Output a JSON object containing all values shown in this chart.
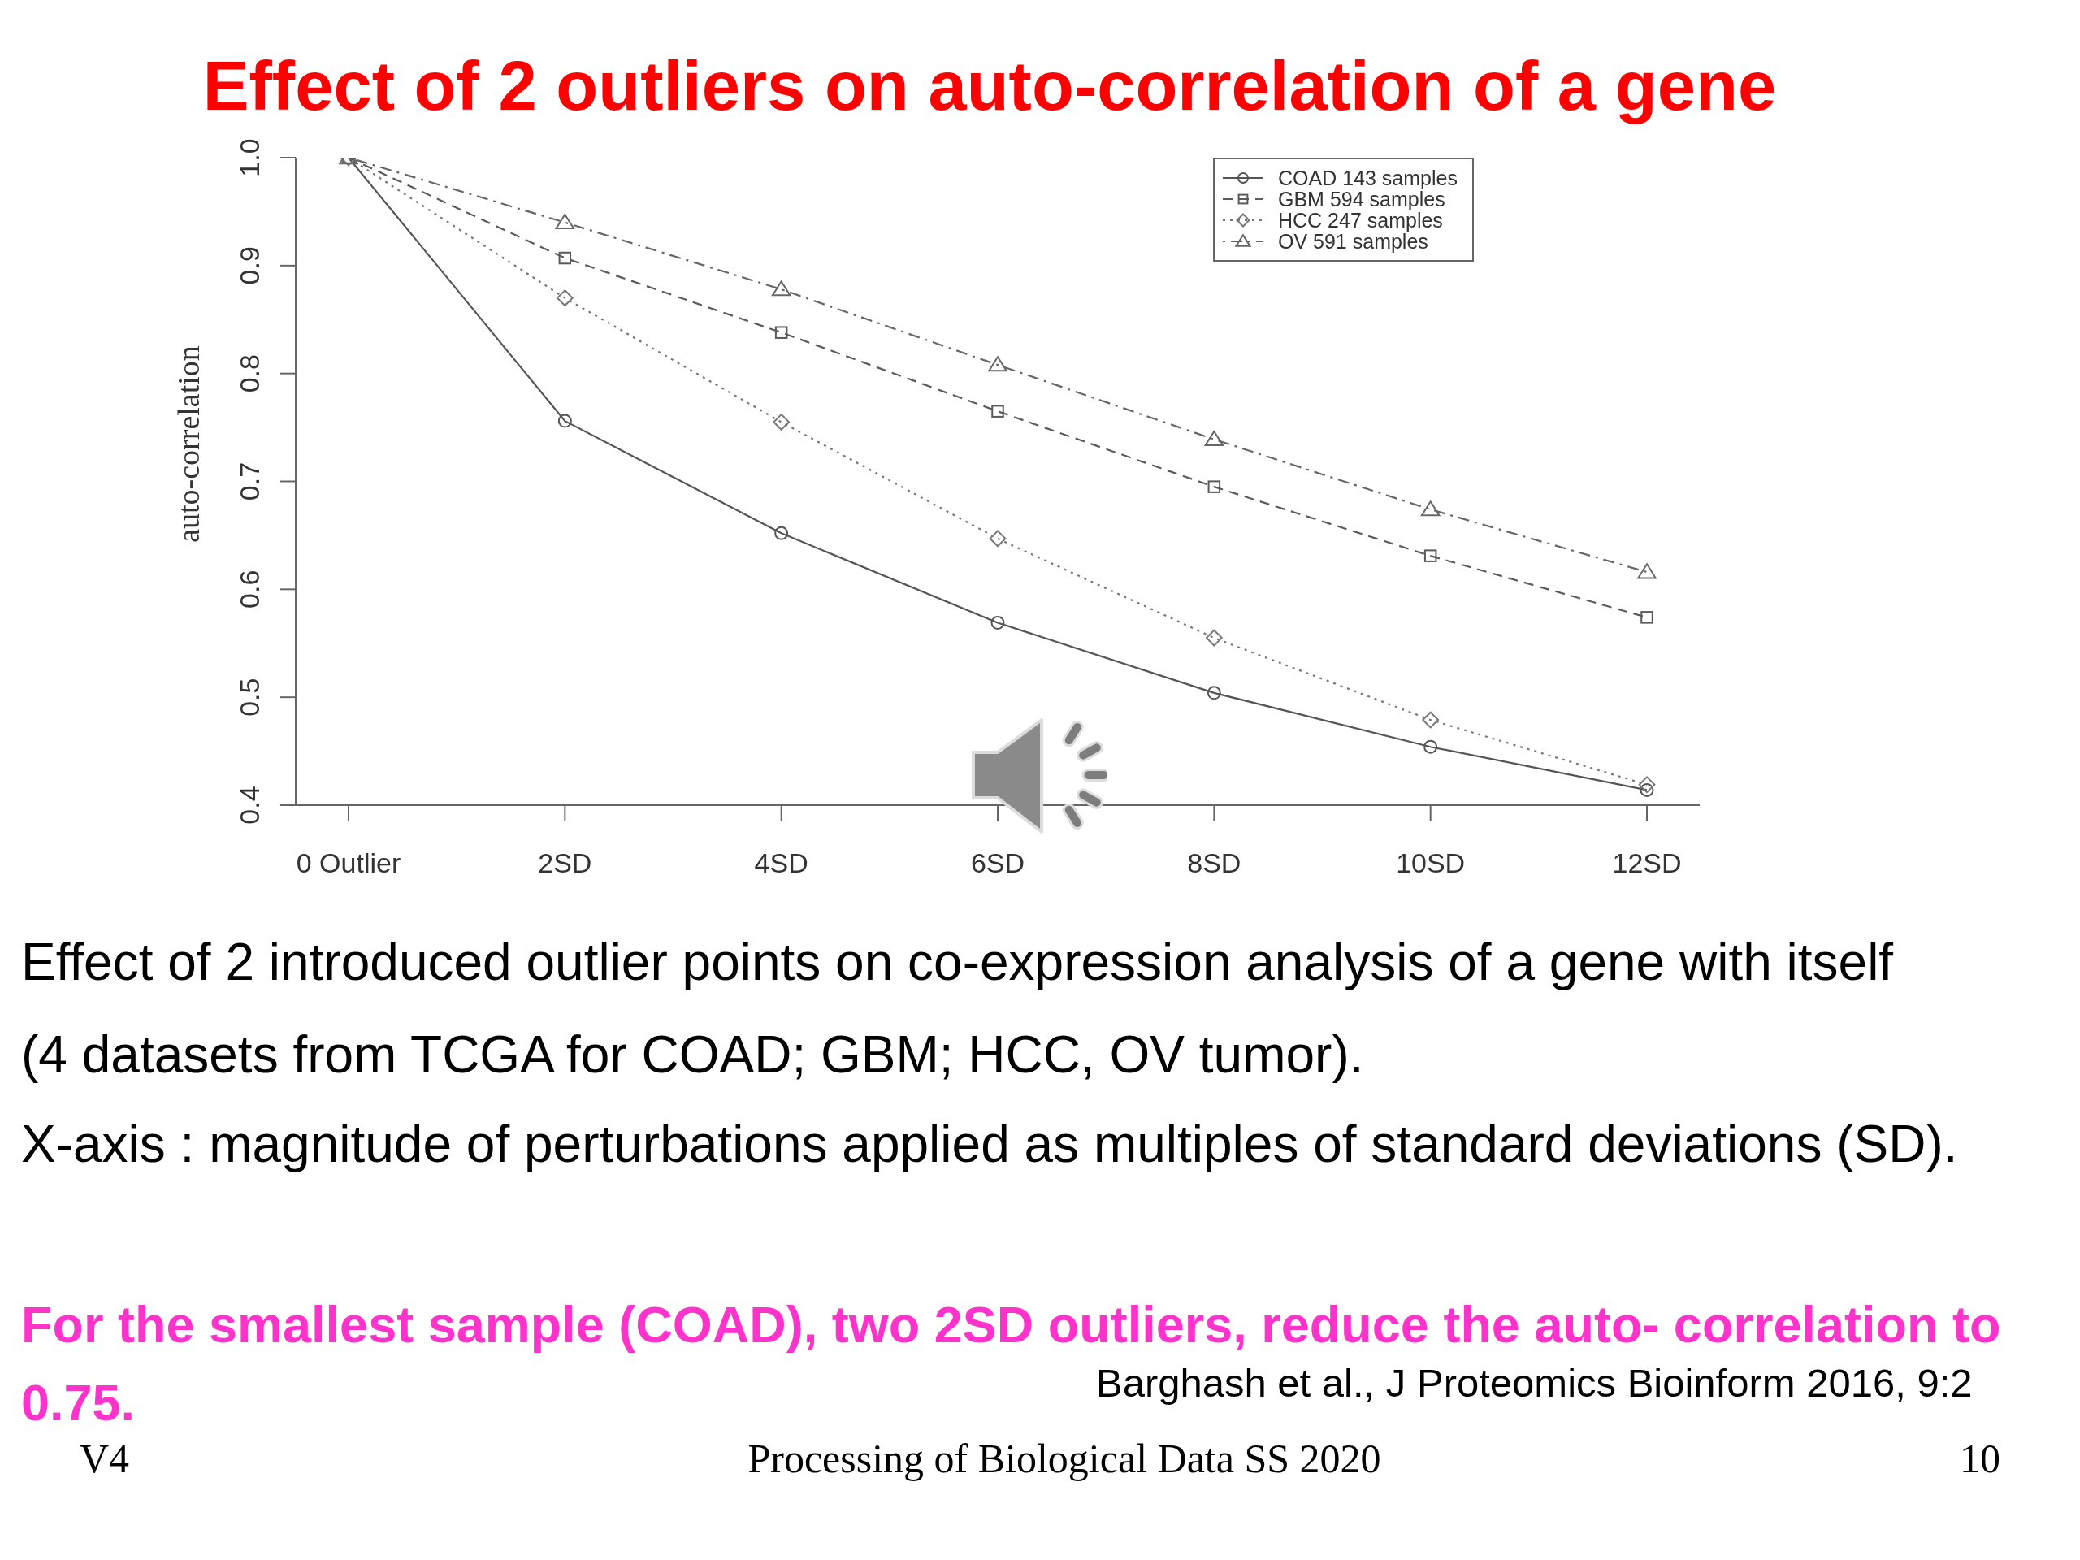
{
  "chart_data": {
    "type": "line",
    "title": "Effect of 2 outliers on auto-correlation of a gene",
    "ylabel": "auto-correlation",
    "categories": [
      "0 Outlier",
      "2SD",
      "4SD",
      "6SD",
      "8SD",
      "10SD",
      "12SD"
    ],
    "series": [
      {
        "name": "COAD 143 samples",
        "color": "#555555",
        "marker": "circle",
        "line_style": "solid",
        "values": [
          1.0,
          0.756,
          0.652,
          0.569,
          0.504,
          0.454,
          0.414
        ]
      },
      {
        "name": "GBM 594 samples",
        "color": "#5a5a5a",
        "marker": "square",
        "line_style": "dashed",
        "values": [
          1.0,
          0.907,
          0.838,
          0.765,
          0.695,
          0.631,
          0.574
        ]
      },
      {
        "name": "HCC 247 samples",
        "color": "#777777",
        "marker": "diamond",
        "line_style": "dotted",
        "values": [
          1.0,
          0.87,
          0.755,
          0.647,
          0.555,
          0.479,
          0.419
        ]
      },
      {
        "name": "OV 591 samples",
        "color": "#666666",
        "marker": "triangle",
        "line_style": "dashdot",
        "values": [
          1.0,
          0.94,
          0.878,
          0.808,
          0.739,
          0.674,
          0.616
        ]
      }
    ],
    "ylim": [
      0.4,
      1.0
    ],
    "yticks": [
      0.4,
      0.5,
      0.6,
      0.7,
      0.8,
      0.9,
      {
        "value": 1,
        "label": "1.0"
      }
    ],
    "legend": "top right",
    "annotations": [
      "Effect of 2 introduced outlier points on co-expression analysis of a gene with itself",
      "(4 datasets from TCGA for COAD; GBM; HCC, OV tumor).",
      "X-axis : magnitude of perturbations applied as multiples of standard deviations (SD).",
      "For the smallest sample (COAD), two 2SD outliers, reduce the auto- correlation to",
      "0.75.",
      "Barghash et al., J Proteomics Bioinform 2016, 9:2",
      "V4",
      "Processing of Biological Data SS 2020",
      "10"
    ]
  }
}
